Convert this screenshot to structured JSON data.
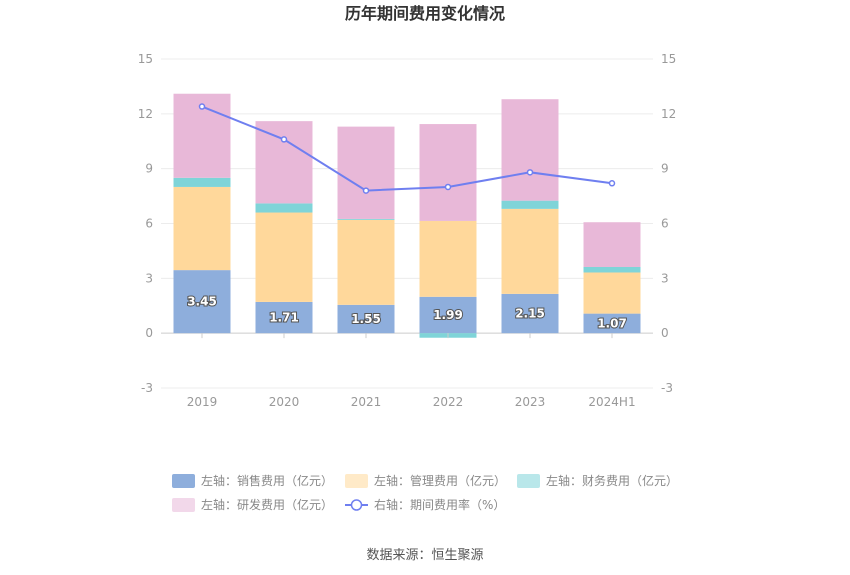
{
  "chart_data": {
    "type": "bar",
    "title": "历年期间费用变化情况",
    "categories": [
      "2019",
      "2020",
      "2021",
      "2022",
      "2023",
      "2024H1"
    ],
    "stacked": true,
    "left_axis": {
      "ylim": [
        -3,
        15
      ],
      "ticks": [
        "15",
        "12",
        "9",
        "6",
        "3",
        "0",
        "-3"
      ]
    },
    "right_axis": {
      "ylim": [
        -3,
        15
      ],
      "ticks": [
        "15",
        "12",
        "9",
        "6",
        "3",
        "0",
        "-3"
      ]
    },
    "series": [
      {
        "name": "左轴：销售费用（亿元）",
        "axis": "left",
        "color": "#8eaedc",
        "values": [
          3.45,
          1.71,
          1.55,
          1.99,
          2.15,
          1.07
        ],
        "labels": [
          "3.45",
          "1.71",
          "1.55",
          "1.99",
          "2.15",
          "1.07"
        ]
      },
      {
        "name": "左轴：管理费用（亿元）",
        "axis": "left",
        "color": "#ffd89b",
        "values": [
          4.55,
          4.89,
          4.65,
          4.15,
          4.65,
          2.25
        ]
      },
      {
        "name": "左轴：财务费用（亿元）",
        "axis": "left",
        "color": "#7fd4d8",
        "values": [
          0.5,
          0.5,
          0.05,
          -0.25,
          0.45,
          0.3
        ]
      },
      {
        "name": "左轴：研发费用（亿元）",
        "axis": "left",
        "color": "#e8b8d8",
        "values": [
          4.6,
          4.5,
          5.05,
          5.3,
          5.55,
          2.45
        ]
      }
    ],
    "line_series": {
      "name": "右轴：期间费用率（%）",
      "axis": "right",
      "color": "#6f7ff0",
      "values": [
        12.4,
        10.6,
        7.8,
        8.0,
        8.8,
        8.2
      ]
    },
    "grid": true,
    "legend_position": "bottom"
  },
  "source": "数据来源：恒生聚源"
}
